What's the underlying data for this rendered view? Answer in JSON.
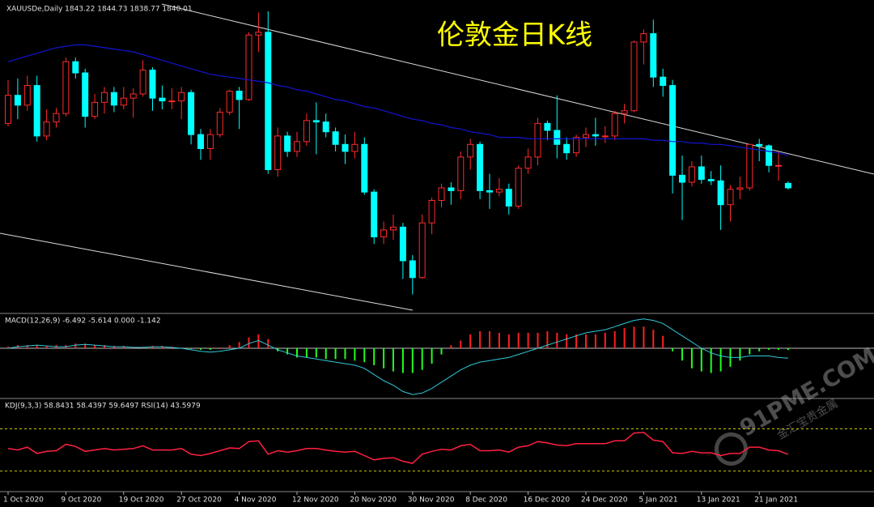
{
  "chart_data": {
    "type": "candlestick",
    "title": "伦敦金日K线",
    "header": "XAUUSDe,Daily  1843.22 1844.73 1838.77 1840.01",
    "up_color": "#ff2a2a",
    "down_color": "#00ffff",
    "ylim": [
      1751,
      1974
    ],
    "categories": [
      "1 Oct 2020",
      null,
      null,
      null,
      null,
      null,
      "9 Oct 2020",
      null,
      null,
      null,
      null,
      null,
      "19 Oct 2020",
      null,
      null,
      null,
      null,
      null,
      "27 Oct 2020",
      null,
      null,
      null,
      null,
      null,
      "4 Nov 2020",
      null,
      null,
      null,
      null,
      null,
      "12 Nov 2020",
      null,
      null,
      null,
      null,
      null,
      "20 Nov 2020",
      null,
      null,
      null,
      null,
      null,
      "30 Nov 2020",
      null,
      null,
      null,
      null,
      null,
      "8 Dec 2020",
      null,
      null,
      null,
      null,
      null,
      "16 Dec 2020",
      null,
      null,
      null,
      null,
      null,
      "24 Dec 2020",
      null,
      null,
      null,
      null,
      null,
      "5 Jan 2021",
      null,
      null,
      null,
      null,
      null,
      "13 Jan 2021",
      null,
      null,
      null,
      null,
      null,
      "21 Jan 2021",
      null,
      null,
      null
    ],
    "ohlc": [
      [
        1886,
        1917,
        1884,
        1906
      ],
      [
        1906,
        1918,
        1889,
        1899
      ],
      [
        1899,
        1920,
        1895,
        1913
      ],
      [
        1913,
        1920,
        1873,
        1877
      ],
      [
        1877,
        1896,
        1874,
        1887
      ],
      [
        1887,
        1897,
        1883,
        1893
      ],
      [
        1893,
        1933,
        1891,
        1930
      ],
      [
        1930,
        1933,
        1918,
        1922
      ],
      [
        1922,
        1925,
        1883,
        1891
      ],
      [
        1891,
        1907,
        1889,
        1901
      ],
      [
        1901,
        1912,
        1893,
        1908
      ],
      [
        1908,
        1912,
        1894,
        1899
      ],
      [
        1899,
        1912,
        1896,
        1904
      ],
      [
        1904,
        1911,
        1890,
        1907
      ],
      [
        1907,
        1931,
        1905,
        1924
      ],
      [
        1924,
        1926,
        1895,
        1904
      ],
      [
        1904,
        1913,
        1896,
        1902
      ],
      [
        1902,
        1911,
        1896,
        1902
      ],
      [
        1902,
        1912,
        1889,
        1908
      ],
      [
        1908,
        1910,
        1871,
        1878
      ],
      [
        1878,
        1882,
        1860,
        1868
      ],
      [
        1868,
        1882,
        1860,
        1878
      ],
      [
        1878,
        1897,
        1876,
        1894
      ],
      [
        1894,
        1910,
        1892,
        1909
      ],
      [
        1909,
        1912,
        1882,
        1903
      ],
      [
        1903,
        1951,
        1902,
        1949
      ],
      [
        1949,
        1965,
        1937,
        1951
      ],
      [
        1951,
        1966,
        1850,
        1853
      ],
      [
        1853,
        1883,
        1848,
        1877
      ],
      [
        1877,
        1880,
        1862,
        1866
      ],
      [
        1866,
        1880,
        1862,
        1873
      ],
      [
        1873,
        1893,
        1870,
        1888
      ],
      [
        1888,
        1901,
        1864,
        1887
      ],
      [
        1887,
        1893,
        1876,
        1880
      ],
      [
        1880,
        1883,
        1866,
        1871
      ],
      [
        1871,
        1878,
        1857,
        1866
      ],
      [
        1866,
        1880,
        1861,
        1871
      ],
      [
        1871,
        1876,
        1835,
        1837
      ],
      [
        1837,
        1839,
        1800,
        1805
      ],
      [
        1805,
        1816,
        1800,
        1810
      ],
      [
        1810,
        1821,
        1803,
        1812
      ],
      [
        1812,
        1815,
        1775,
        1788
      ],
      [
        1788,
        1792,
        1764,
        1776
      ],
      [
        1776,
        1821,
        1775,
        1815
      ],
      [
        1815,
        1833,
        1807,
        1831
      ],
      [
        1831,
        1843,
        1826,
        1840
      ],
      [
        1840,
        1844,
        1828,
        1838
      ],
      [
        1838,
        1866,
        1832,
        1862
      ],
      [
        1862,
        1875,
        1853,
        1871
      ],
      [
        1871,
        1873,
        1832,
        1838
      ],
      [
        1838,
        1850,
        1825,
        1837
      ],
      [
        1837,
        1847,
        1834,
        1839
      ],
      [
        1839,
        1843,
        1821,
        1827
      ],
      [
        1827,
        1856,
        1825,
        1854
      ],
      [
        1854,
        1868,
        1850,
        1862
      ],
      [
        1862,
        1890,
        1856,
        1886
      ],
      [
        1886,
        1888,
        1874,
        1881
      ],
      [
        1881,
        1906,
        1861,
        1871
      ],
      [
        1871,
        1876,
        1860,
        1865
      ],
      [
        1865,
        1878,
        1862,
        1876
      ],
      [
        1876,
        1883,
        1869,
        1878
      ],
      [
        1878,
        1890,
        1870,
        1877
      ],
      [
        1877,
        1884,
        1872,
        1877
      ],
      [
        1877,
        1895,
        1874,
        1893
      ],
      [
        1893,
        1900,
        1886,
        1895
      ],
      [
        1895,
        1945,
        1894,
        1944
      ],
      [
        1944,
        1953,
        1928,
        1950
      ],
      [
        1950,
        1960,
        1912,
        1919
      ],
      [
        1919,
        1925,
        1905,
        1913
      ],
      [
        1913,
        1917,
        1836,
        1849
      ],
      [
        1849,
        1863,
        1817,
        1844
      ],
      [
        1844,
        1859,
        1841,
        1855
      ],
      [
        1855,
        1863,
        1843,
        1846
      ],
      [
        1846,
        1852,
        1842,
        1845
      ],
      [
        1845,
        1856,
        1810,
        1828
      ],
      [
        1828,
        1842,
        1816,
        1839
      ],
      [
        1839,
        1848,
        1832,
        1840
      ],
      [
        1840,
        1871,
        1838,
        1871
      ],
      [
        1871,
        1875,
        1859,
        1870
      ],
      [
        1870,
        1871,
        1851,
        1856
      ],
      [
        1856,
        1866,
        1845,
        1856
      ],
      [
        1843.22,
        1844.73,
        1838.77,
        1840.01
      ]
    ],
    "ma": {
      "color": "#1414d2",
      "values": [
        1930,
        1932,
        1934,
        1936,
        1938,
        1940,
        1941,
        1942,
        1942,
        1941,
        1940,
        1939,
        1938,
        1937,
        1935,
        1933,
        1931,
        1929,
        1927,
        1925,
        1923,
        1921,
        1920,
        1919,
        1918,
        1917,
        1916,
        1915,
        1913,
        1912,
        1910,
        1909,
        1907,
        1905,
        1903,
        1902,
        1900,
        1898,
        1897,
        1895,
        1893,
        1891,
        1889,
        1888,
        1886,
        1885,
        1883,
        1882,
        1880,
        1879,
        1878,
        1876,
        1876,
        1876,
        1875,
        1875,
        1875,
        1875,
        1875,
        1875,
        1875,
        1875,
        1875,
        1875,
        1875,
        1875,
        1875,
        1874,
        1874,
        1873,
        1873,
        1872,
        1872,
        1871,
        1871,
        1870,
        1869,
        1868,
        1867,
        1866,
        1865,
        1863
      ]
    },
    "macd": {
      "header": "MACD(12,26,9) -6.492 -5.614 0.000 -1.142",
      "ylim": [
        -32,
        22
      ],
      "yticks": [
        0
      ],
      "hist_up_color": "#ff2020",
      "hist_down_color": "#20ff20",
      "line_color": "#30c8d8",
      "hist": [
        1,
        2,
        2,
        2,
        1.5,
        2,
        2,
        3,
        3,
        2,
        2,
        1.5,
        1.5,
        1,
        1,
        1.5,
        1.5,
        1,
        0.5,
        -0.5,
        -1,
        -1,
        0.5,
        2,
        4,
        7,
        9,
        6,
        -2,
        -4,
        -6,
        -6,
        -6,
        -7,
        -7,
        -7,
        -8,
        -9,
        -11,
        -13,
        -15,
        -16,
        -16,
        -14,
        -10,
        -4,
        2,
        5,
        9,
        11,
        11,
        10,
        9,
        10,
        10,
        10,
        11,
        10,
        9,
        9,
        9,
        9,
        10,
        11,
        13,
        14,
        14,
        12,
        8,
        -2,
        -8,
        -13,
        -15,
        -16,
        -15,
        -12,
        -8,
        -4,
        -2,
        -1,
        -1,
        -1.142
      ],
      "line": [
        0,
        1,
        1.5,
        2,
        1.5,
        1,
        1,
        2,
        2.5,
        2,
        1.5,
        1,
        1,
        0.5,
        0.5,
        1,
        1,
        0.5,
        0,
        -1,
        -2,
        -2.5,
        -2,
        -1,
        0,
        3,
        5,
        2,
        -1,
        -3,
        -5,
        -6,
        -7,
        -8,
        -9,
        -10,
        -11,
        -13,
        -17,
        -21,
        -24,
        -28,
        -30,
        -29,
        -26,
        -22,
        -18,
        -14,
        -11,
        -9,
        -8,
        -7,
        -6,
        -4,
        -2,
        0,
        2,
        4,
        6,
        8,
        10,
        11,
        12,
        14,
        16,
        18,
        19,
        18,
        16,
        12,
        8,
        4,
        0,
        -3,
        -5,
        -6,
        -6,
        -5,
        -5,
        -5,
        -6,
        -6.492
      ]
    },
    "kdj": {
      "header": "KDJ(9,3,3) 58.8431 58.4397 59.6497  RSI(14) 43.5979",
      "ylim": [
        -8,
        122
      ],
      "yticks": [
        80,
        20
      ],
      "level_color": "#c8c800",
      "rsi_color": "#ff2040",
      "rsi": [
        52,
        50,
        54,
        45,
        48,
        49,
        58,
        55,
        48,
        50,
        52,
        50,
        51,
        52,
        56,
        50,
        50,
        50,
        52,
        44,
        42,
        45,
        49,
        53,
        52,
        62,
        63,
        44,
        49,
        47,
        49,
        52,
        52,
        50,
        48,
        47,
        48,
        42,
        36,
        38,
        39,
        34,
        31,
        44,
        48,
        51,
        50,
        56,
        58,
        49,
        49,
        50,
        47,
        54,
        56,
        62,
        60,
        57,
        56,
        59,
        59,
        59,
        59,
        63,
        63,
        74,
        75,
        64,
        62,
        46,
        45,
        48,
        46,
        46,
        42,
        45,
        45,
        54,
        54,
        50,
        49,
        43.5979
      ]
    },
    "watermark": "91PME.COM",
    "watermark_sub": "金汇宝贵金属"
  }
}
